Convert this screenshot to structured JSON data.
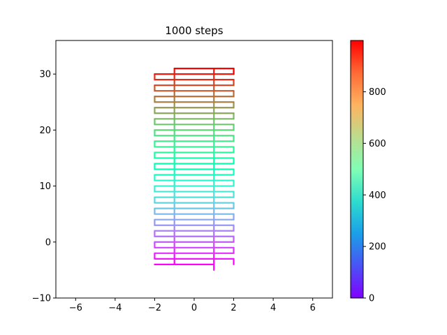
{
  "chart_data": {
    "type": "line",
    "title": "1000 steps",
    "xlabel": "",
    "ylabel": "",
    "xlim": [
      -7,
      7
    ],
    "ylim": [
      -10,
      36
    ],
    "x_ticks": [
      -6,
      -4,
      -2,
      0,
      2,
      4,
      6
    ],
    "y_ticks": [
      -10,
      0,
      10,
      20,
      30
    ],
    "grid": false,
    "colormap": "rainbow",
    "color_by": "step index",
    "steps": 1000,
    "colorbar": {
      "range": [
        0,
        999
      ],
      "ticks": [
        0,
        200,
        400,
        600,
        800
      ]
    },
    "series": [
      {
        "rows": [
          -4,
          -3,
          -2,
          -1,
          0,
          1,
          2,
          3,
          4,
          5,
          6,
          7,
          8,
          9,
          10,
          11,
          12,
          13,
          14,
          15,
          16,
          17,
          18,
          19,
          20,
          21,
          22,
          23,
          24,
          25,
          26,
          27,
          28,
          29,
          30,
          31
        ],
        "x_columns": [
          -2,
          -1,
          1,
          2
        ],
        "start": [
          1,
          -5
        ],
        "end": [
          2,
          31
        ]
      }
    ]
  }
}
